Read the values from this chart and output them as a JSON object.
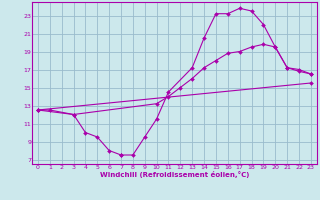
{
  "background_color": "#cce8ec",
  "grid_color": "#99bbcc",
  "line_color": "#aa00aa",
  "xlim": [
    -0.5,
    23.5
  ],
  "ylim": [
    6.5,
    24.5
  ],
  "xticks": [
    0,
    1,
    2,
    3,
    4,
    5,
    6,
    7,
    8,
    9,
    10,
    11,
    12,
    13,
    14,
    15,
    16,
    17,
    18,
    19,
    20,
    21,
    22,
    23
  ],
  "yticks": [
    7,
    9,
    11,
    13,
    15,
    17,
    19,
    21,
    23
  ],
  "xlabel": "Windchill (Refroidissement éolien,°C)",
  "curve1_x": [
    0,
    1,
    3,
    4,
    5,
    6,
    7,
    7,
    8,
    9,
    10,
    11,
    13,
    14,
    15,
    16,
    17,
    18,
    19,
    20,
    21,
    22,
    23
  ],
  "curve1_y": [
    12.5,
    12.5,
    12.0,
    10.0,
    9.5,
    8.0,
    7.5,
    7.5,
    7.5,
    9.5,
    11.5,
    14.5,
    17.2,
    20.5,
    23.2,
    23.2,
    23.8,
    23.5,
    22.0,
    19.5,
    17.2,
    17.0,
    16.5
  ],
  "curve2_x": [
    0,
    3,
    10,
    11,
    12,
    13,
    14,
    15,
    16,
    17,
    18,
    19,
    20,
    21,
    22,
    23
  ],
  "curve2_y": [
    12.5,
    12.0,
    13.2,
    14.0,
    15.0,
    16.0,
    17.2,
    18.0,
    18.8,
    19.0,
    19.5,
    19.8,
    19.5,
    17.2,
    16.8,
    16.5
  ],
  "curve3_x": [
    0,
    23
  ],
  "curve3_y": [
    12.5,
    15.5
  ]
}
